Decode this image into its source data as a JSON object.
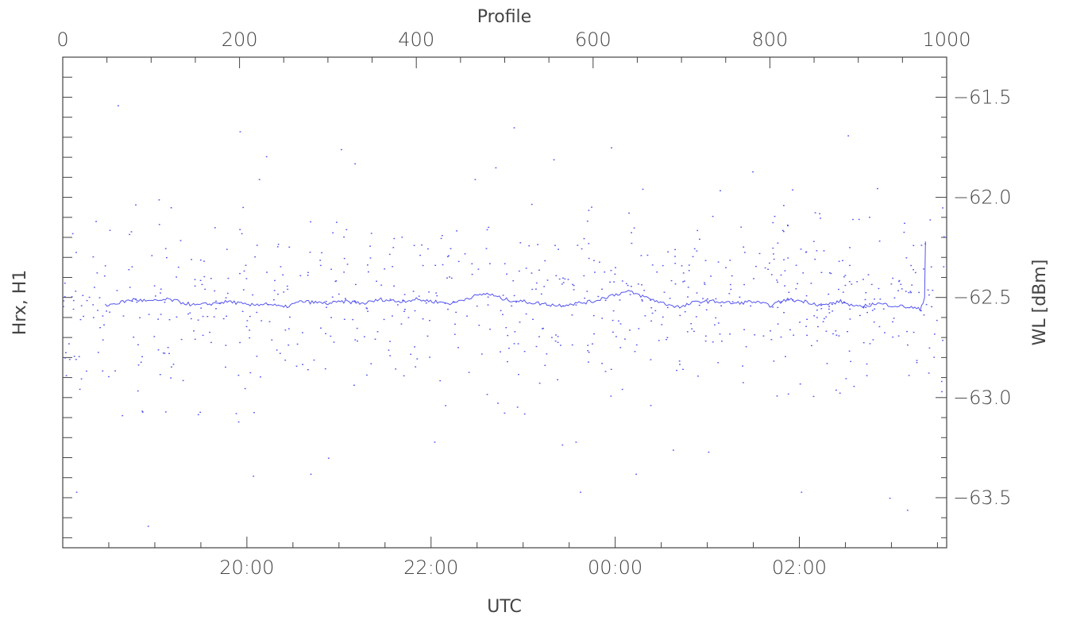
{
  "chart_data": {
    "type": "scatter",
    "title": "",
    "top_axis": {
      "label": "Profile",
      "range": [
        0,
        1000
      ],
      "ticks": [
        0,
        200,
        400,
        600,
        800,
        1000
      ],
      "tick_labels": [
        "0",
        "200",
        "400",
        "600",
        "800",
        "1000"
      ]
    },
    "bottom_axis": {
      "label": "UTC",
      "range_hours": [
        18.0,
        27.6
      ],
      "tick_hours": [
        20,
        22,
        24,
        26
      ],
      "tick_labels": [
        "20:00",
        "22:00",
        "00:00",
        "02:00"
      ]
    },
    "left_axis": {
      "label": "Hrx, H1"
    },
    "right_axis": {
      "label": "WL [dBm]",
      "range": [
        -63.75,
        -61.3
      ],
      "ticks": [
        -61.5,
        -62.0,
        -62.5,
        -63.0,
        -63.5
      ],
      "tick_labels": [
        "−61.5",
        "−62.0",
        "−62.5",
        "−63.0",
        "−63.5"
      ]
    },
    "grid": false,
    "colors": {
      "series": "#5555ee",
      "axis": "#444444"
    },
    "series": [
      {
        "kind": "line",
        "x_profile": [
          48,
          60,
          80,
          100,
          120,
          150,
          170,
          190,
          210,
          230,
          250,
          270,
          300,
          320,
          340,
          360,
          380,
          400,
          420,
          440,
          460,
          480,
          500,
          520,
          540,
          560,
          580,
          600,
          620,
          640,
          660,
          680,
          700,
          710,
          720,
          740,
          760,
          780,
          800,
          820,
          840,
          860,
          880,
          900,
          920,
          940,
          960,
          970,
          975,
          976
        ],
        "y": [
          -62.54,
          -62.53,
          -62.51,
          -62.52,
          -62.51,
          -62.54,
          -62.53,
          -62.52,
          -62.54,
          -62.53,
          -62.55,
          -62.52,
          -62.53,
          -62.52,
          -62.53,
          -62.51,
          -62.52,
          -62.51,
          -62.52,
          -62.53,
          -62.5,
          -62.48,
          -62.51,
          -62.52,
          -62.53,
          -62.54,
          -62.53,
          -62.52,
          -62.49,
          -62.47,
          -62.5,
          -62.53,
          -62.55,
          -62.53,
          -62.52,
          -62.52,
          -62.53,
          -62.52,
          -62.54,
          -62.51,
          -62.52,
          -62.54,
          -62.52,
          -62.55,
          -62.53,
          -62.54,
          -62.55,
          -62.56,
          -62.5,
          -62.22
        ]
      },
      {
        "kind": "points",
        "n_points": 760,
        "center": -62.52,
        "spread": 0.23,
        "outliers": [
          [
            62,
            -61.54
          ],
          [
            200,
            -61.67
          ],
          [
            96,
            -63.64
          ],
          [
            510,
            -61.65
          ],
          [
            888,
            -61.69
          ],
          [
            300,
            -63.3
          ],
          [
            215,
            -63.39
          ],
          [
            585,
            -63.47
          ],
          [
            730,
            -63.27
          ],
          [
            835,
            -63.47
          ],
          [
            955,
            -63.56
          ],
          [
            935,
            -63.5
          ],
          [
            15,
            -63.47
          ],
          [
            280,
            -63.38
          ],
          [
            648,
            -63.38
          ],
          [
            580,
            -63.22
          ],
          [
            690,
            -63.26
          ],
          [
            420,
            -63.22
          ],
          [
            330,
            -61.83
          ],
          [
            555,
            -61.81
          ],
          [
            620,
            -61.75
          ],
          [
            780,
            -61.87
          ],
          [
            825,
            -61.96
          ]
        ]
      }
    ]
  }
}
